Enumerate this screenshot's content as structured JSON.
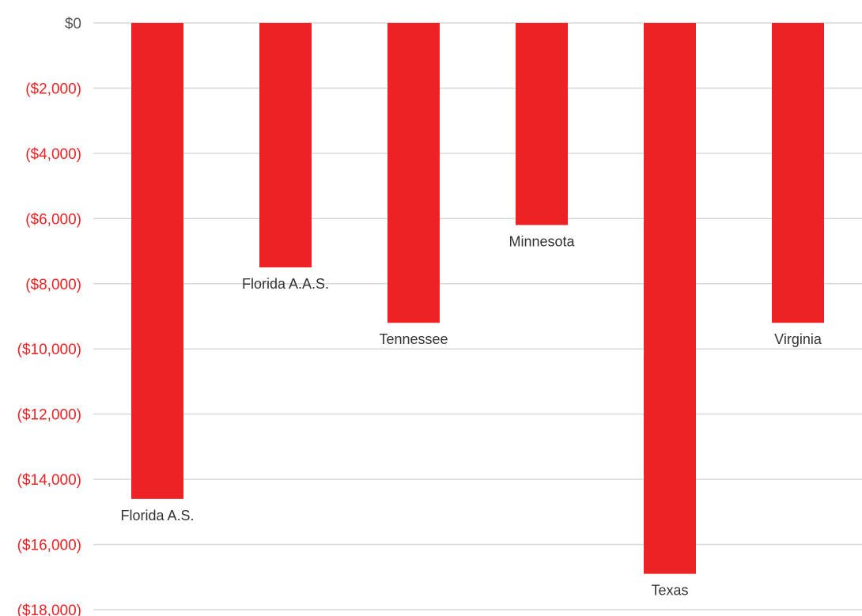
{
  "chart_data": {
    "type": "bar",
    "categories": [
      "Florida A.S.",
      "Florida A.A.S.",
      "Tennessee",
      "Minnesota",
      "Texas",
      "Virginia"
    ],
    "values": [
      -14600,
      -7500,
      -9200,
      -6200,
      -16900,
      -9200
    ],
    "ylim": [
      -18000,
      0
    ],
    "yticks": [
      0,
      -2000,
      -4000,
      -6000,
      -8000,
      -10000,
      -12000,
      -14000,
      -16000,
      -18000
    ],
    "ytick_labels": [
      "$0",
      "($2,000)",
      "($4,000)",
      "($6,000)",
      "($8,000)",
      "($10,000)",
      "($12,000)",
      "($14,000)",
      "($16,000)",
      "($18,000)"
    ],
    "grid": true,
    "legend": false,
    "category_labels_position": "below-bar-end",
    "colors": {
      "bar": "#ed2224",
      "negative_tick_label": "#ed2224",
      "zero_tick_label": "#555555",
      "gridline": "#d9d9d9",
      "bar_label": "#333333"
    }
  }
}
